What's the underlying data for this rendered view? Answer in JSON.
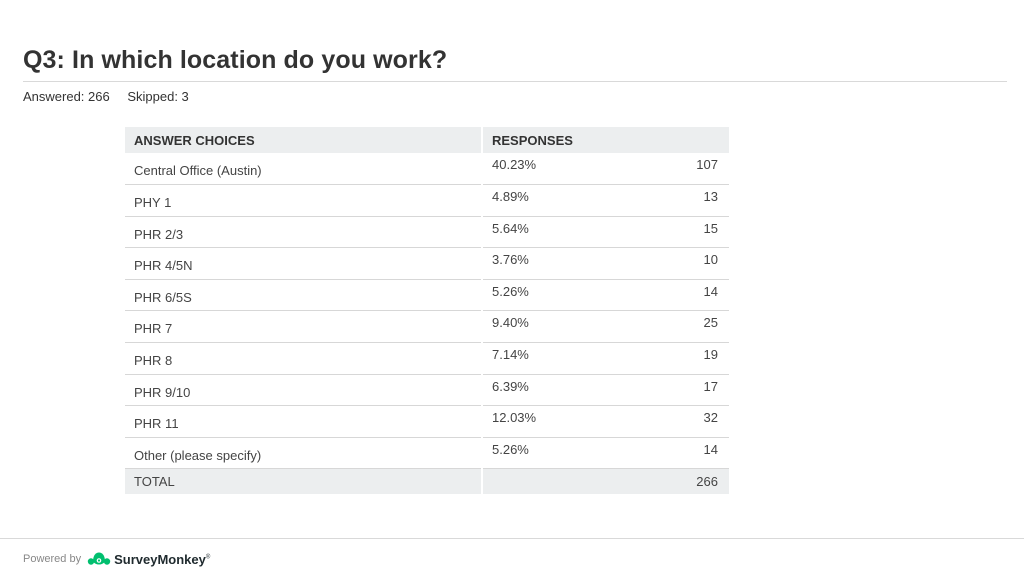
{
  "page": {
    "title": "Q3: In which location do you work?",
    "answered": "Answered: 266",
    "skipped": "Skipped: 3"
  },
  "table": {
    "headers": {
      "choices": "ANSWER CHOICES",
      "responses": "RESPONSES"
    },
    "total_label": "TOTAL",
    "total_value": "266"
  },
  "chart_data": {
    "type": "table",
    "title": "Q3: In which location do you work?",
    "columns": [
      "ANSWER CHOICES",
      "RESPONSES",
      "RESPONSES"
    ],
    "rows": [
      {
        "choice": "Central Office (Austin)",
        "percent": "40.23%",
        "count": "107"
      },
      {
        "choice": "PHY 1",
        "percent": "4.89%",
        "count": "13"
      },
      {
        "choice": "PHR 2/3",
        "percent": "5.64%",
        "count": "15"
      },
      {
        "choice": "PHR 4/5N",
        "percent": "3.76%",
        "count": "10"
      },
      {
        "choice": "PHR 6/5S",
        "percent": "5.26%",
        "count": "14"
      },
      {
        "choice": "PHR 7",
        "percent": "9.40%",
        "count": "25"
      },
      {
        "choice": "PHR 8",
        "percent": "7.14%",
        "count": "19"
      },
      {
        "choice": "PHR 9/10",
        "percent": "6.39%",
        "count": "17"
      },
      {
        "choice": "PHR 11",
        "percent": "12.03%",
        "count": "32"
      },
      {
        "choice": "Other (please specify)",
        "percent": "5.26%",
        "count": "14"
      }
    ],
    "total": "266"
  },
  "footer": {
    "powered_by": "Powered by",
    "brand": "SurveyMonkey",
    "brand_mark": "®",
    "brand_icon": "surveymonkey-logo-icon",
    "brand_color": "#00bf6f"
  }
}
